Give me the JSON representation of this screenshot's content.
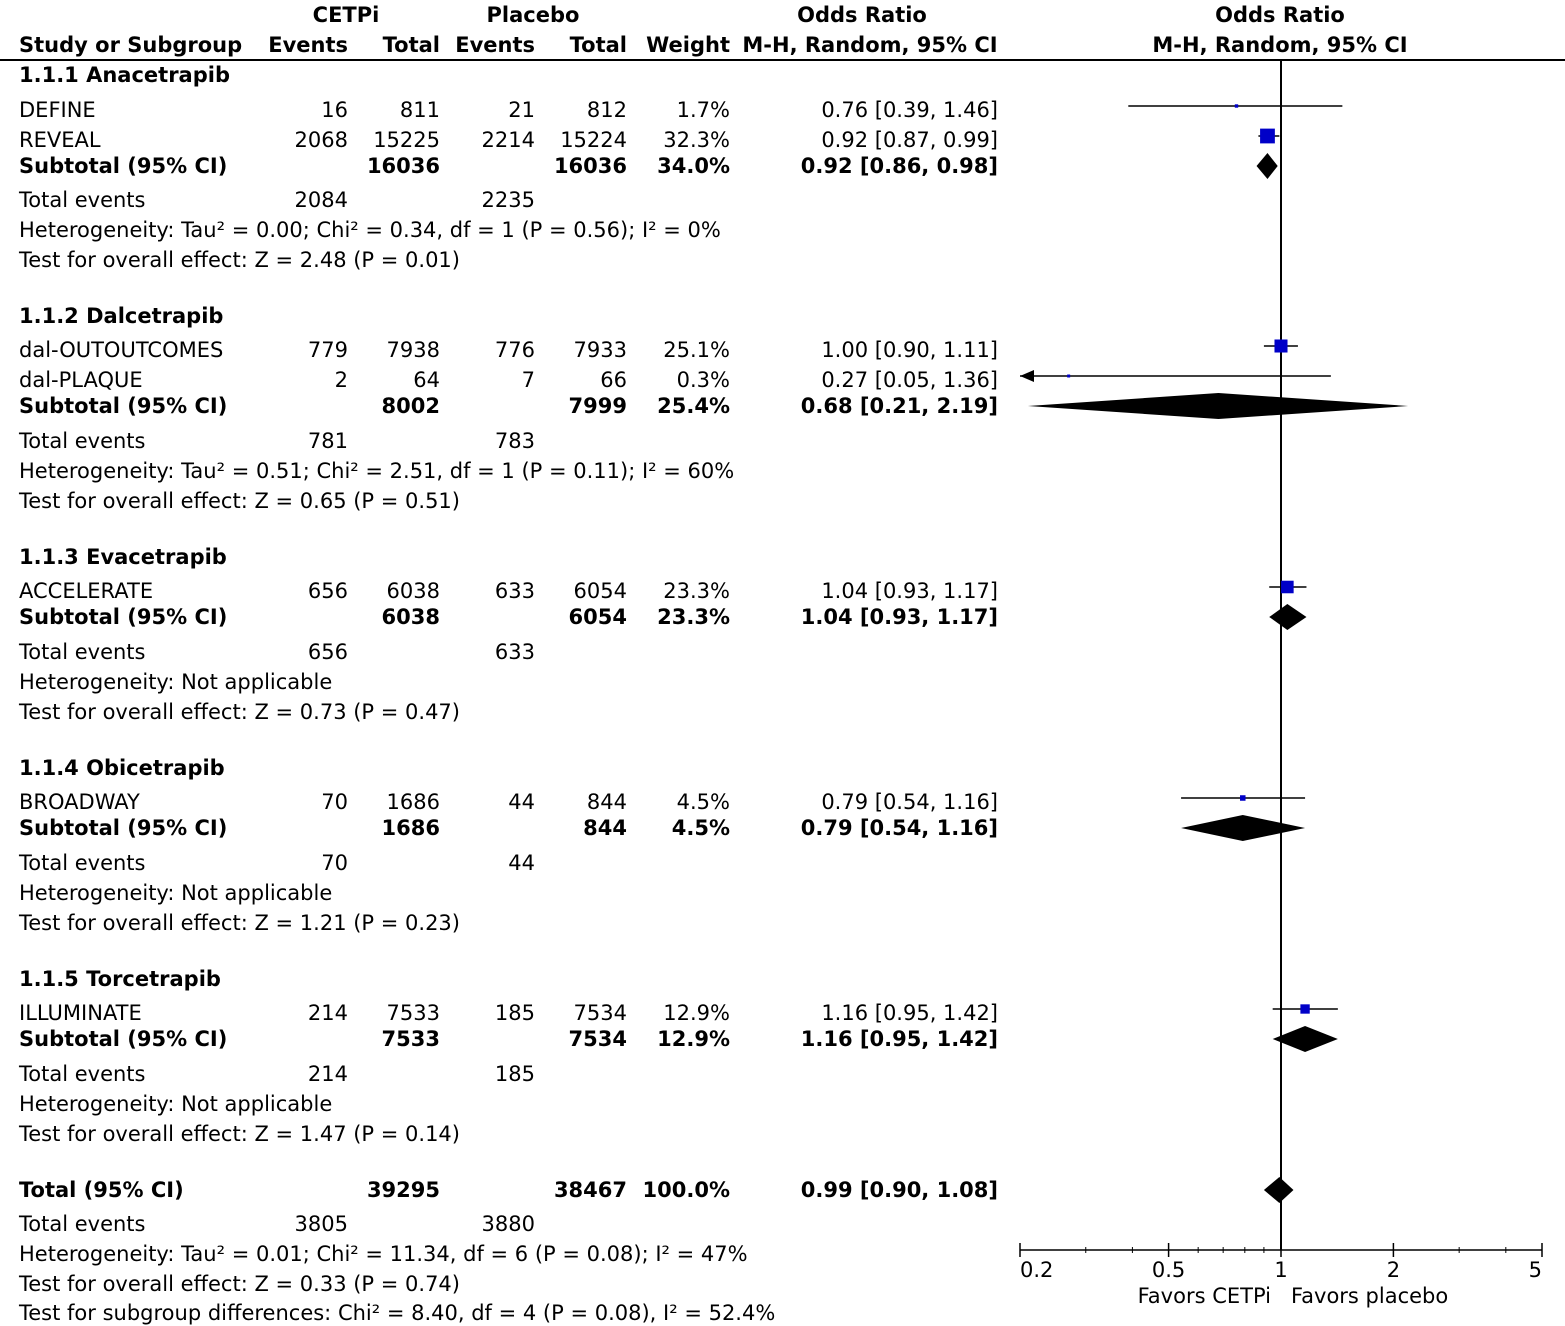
{
  "headers": {
    "group1": "CETPi",
    "group2": "Placebo",
    "or_text": "Odds Ratio",
    "or_plot": "Odds Ratio",
    "study": "Study or Subgroup",
    "events1": "Events",
    "total1": "Total",
    "events2": "Events",
    "total2": "Total",
    "weight": "Weight",
    "method_text": "M-H, Random, 95% CI",
    "method_plot": "M-H, Random, 95% CI"
  },
  "subgroups": [
    {
      "title": "1.1.1 Anacetrapib",
      "studies": [
        {
          "name": "DEFINE",
          "e1": "16",
          "t1": "811",
          "e2": "21",
          "t2": "812",
          "weight": "1.7%",
          "ci": "0.76 [0.39, 1.46]"
        },
        {
          "name": "REVEAL",
          "e1": "2068",
          "t1": "15225",
          "e2": "2214",
          "t2": "15224",
          "weight": "32.3%",
          "ci": "0.92 [0.87, 0.99]"
        }
      ],
      "subtotal": {
        "label": "Subtotal (95% CI)",
        "t1": "16036",
        "t2": "16036",
        "weight": "34.0%",
        "ci": "0.92 [0.86, 0.98]"
      },
      "total_events": {
        "label": "Total events",
        "e1": "2084",
        "e2": "2235"
      },
      "heterogeneity": "Heterogeneity: Tau² = 0.00; Chi² = 0.34, df = 1 (P = 0.56); I² = 0%",
      "overall": "Test for overall effect: Z = 2.48 (P = 0.01)"
    },
    {
      "title": "1.1.2 Dalcetrapib",
      "studies": [
        {
          "name": "dal-OUTOUTCOMES",
          "e1": "779",
          "t1": "7938",
          "e2": "776",
          "t2": "7933",
          "weight": "25.1%",
          "ci": "1.00 [0.90, 1.11]"
        },
        {
          "name": "dal-PLAQUE",
          "e1": "2",
          "t1": "64",
          "e2": "7",
          "t2": "66",
          "weight": "0.3%",
          "ci": "0.27 [0.05, 1.36]"
        }
      ],
      "subtotal": {
        "label": "Subtotal (95% CI)",
        "t1": "8002",
        "t2": "7999",
        "weight": "25.4%",
        "ci": "0.68 [0.21, 2.19]"
      },
      "total_events": {
        "label": "Total events",
        "e1": "781",
        "e2": "783"
      },
      "heterogeneity": "Heterogeneity: Tau² = 0.51; Chi² = 2.51, df = 1 (P = 0.11); I² = 60%",
      "overall": "Test for overall effect: Z = 0.65 (P = 0.51)"
    },
    {
      "title": "1.1.3 Evacetrapib",
      "studies": [
        {
          "name": "ACCELERATE",
          "e1": "656",
          "t1": "6038",
          "e2": "633",
          "t2": "6054",
          "weight": "23.3%",
          "ci": "1.04 [0.93, 1.17]"
        }
      ],
      "subtotal": {
        "label": "Subtotal (95% CI)",
        "t1": "6038",
        "t2": "6054",
        "weight": "23.3%",
        "ci": "1.04 [0.93, 1.17]"
      },
      "total_events": {
        "label": "Total events",
        "e1": "656",
        "e2": "633"
      },
      "heterogeneity": "Heterogeneity: Not applicable",
      "overall": "Test for overall effect: Z = 0.73 (P = 0.47)"
    },
    {
      "title": "1.1.4 Obicetrapib",
      "studies": [
        {
          "name": "BROADWAY",
          "e1": "70",
          "t1": "1686",
          "e2": "44",
          "t2": "844",
          "weight": "4.5%",
          "ci": "0.79 [0.54, 1.16]"
        }
      ],
      "subtotal": {
        "label": "Subtotal (95% CI)",
        "t1": "1686",
        "t2": "844",
        "weight": "4.5%",
        "ci": "0.79 [0.54, 1.16]"
      },
      "total_events": {
        "label": "Total events",
        "e1": "70",
        "e2": "44"
      },
      "heterogeneity": "Heterogeneity: Not applicable",
      "overall": "Test for overall effect: Z = 1.21 (P = 0.23)"
    },
    {
      "title": "1.1.5 Torcetrapib",
      "studies": [
        {
          "name": "ILLUMINATE",
          "e1": "214",
          "t1": "7533",
          "e2": "185",
          "t2": "7534",
          "weight": "12.9%",
          "ci": "1.16 [0.95, 1.42]"
        }
      ],
      "subtotal": {
        "label": "Subtotal (95% CI)",
        "t1": "7533",
        "t2": "7534",
        "weight": "12.9%",
        "ci": "1.16 [0.95, 1.42]"
      },
      "total_events": {
        "label": "Total events",
        "e1": "214",
        "e2": "185"
      },
      "heterogeneity": "Heterogeneity: Not applicable",
      "overall": "Test for overall effect: Z = 1.47 (P = 0.14)"
    }
  ],
  "total": {
    "label": "Total (95% CI)",
    "t1": "39295",
    "t2": "38467",
    "weight": "100.0%",
    "ci": "0.99 [0.90, 1.08]",
    "events_label": "Total events",
    "e1": "3805",
    "e2": "3880",
    "heterogeneity": "Heterogeneity: Tau² = 0.01; Chi² = 11.34, df = 6 (P = 0.08); I² = 47%",
    "overall": "Test for overall effect: Z = 0.33 (P = 0.74)",
    "subgroup_diff": "Test for subgroup differences: Chi² = 8.40, df = 4 (P = 0.08), I² = 52.4%"
  },
  "chart_data": {
    "type": "forest",
    "scale": "log",
    "xlim": [
      0.2,
      5
    ],
    "ticks": [
      0.2,
      0.5,
      1,
      2,
      5
    ],
    "tick_labels": [
      "0.2",
      "0.5",
      "1",
      "2",
      "5"
    ],
    "null_value": 1,
    "favors_left": "Favors CETPi",
    "favors_right": "Favors placebo",
    "study_color": "#0000c8",
    "diamond_color": "#000000",
    "studies": [
      {
        "name": "DEFINE",
        "or": 0.76,
        "lo": 0.39,
        "hi": 1.46,
        "weight": 1.7
      },
      {
        "name": "REVEAL",
        "or": 0.92,
        "lo": 0.87,
        "hi": 0.99,
        "weight": 32.3
      },
      {
        "name": "dal-OUTOUTCOMES",
        "or": 1.0,
        "lo": 0.9,
        "hi": 1.11,
        "weight": 25.1
      },
      {
        "name": "dal-PLAQUE",
        "or": 0.27,
        "lo": 0.05,
        "hi": 1.36,
        "weight": 0.3
      },
      {
        "name": "ACCELERATE",
        "or": 1.04,
        "lo": 0.93,
        "hi": 1.17,
        "weight": 23.3
      },
      {
        "name": "BROADWAY",
        "or": 0.79,
        "lo": 0.54,
        "hi": 1.16,
        "weight": 4.5
      },
      {
        "name": "ILLUMINATE",
        "or": 1.16,
        "lo": 0.95,
        "hi": 1.42,
        "weight": 12.9
      }
    ],
    "diamonds": [
      {
        "name": "Subtotal 1.1.1",
        "or": 0.92,
        "lo": 0.86,
        "hi": 0.98
      },
      {
        "name": "Subtotal 1.1.2",
        "or": 0.68,
        "lo": 0.21,
        "hi": 2.19
      },
      {
        "name": "Subtotal 1.1.3",
        "or": 1.04,
        "lo": 0.93,
        "hi": 1.17
      },
      {
        "name": "Subtotal 1.1.4",
        "or": 0.79,
        "lo": 0.54,
        "hi": 1.16
      },
      {
        "name": "Subtotal 1.1.5",
        "or": 1.16,
        "lo": 0.95,
        "hi": 1.42
      },
      {
        "name": "Total",
        "or": 0.99,
        "lo": 0.9,
        "hi": 1.08
      }
    ]
  }
}
